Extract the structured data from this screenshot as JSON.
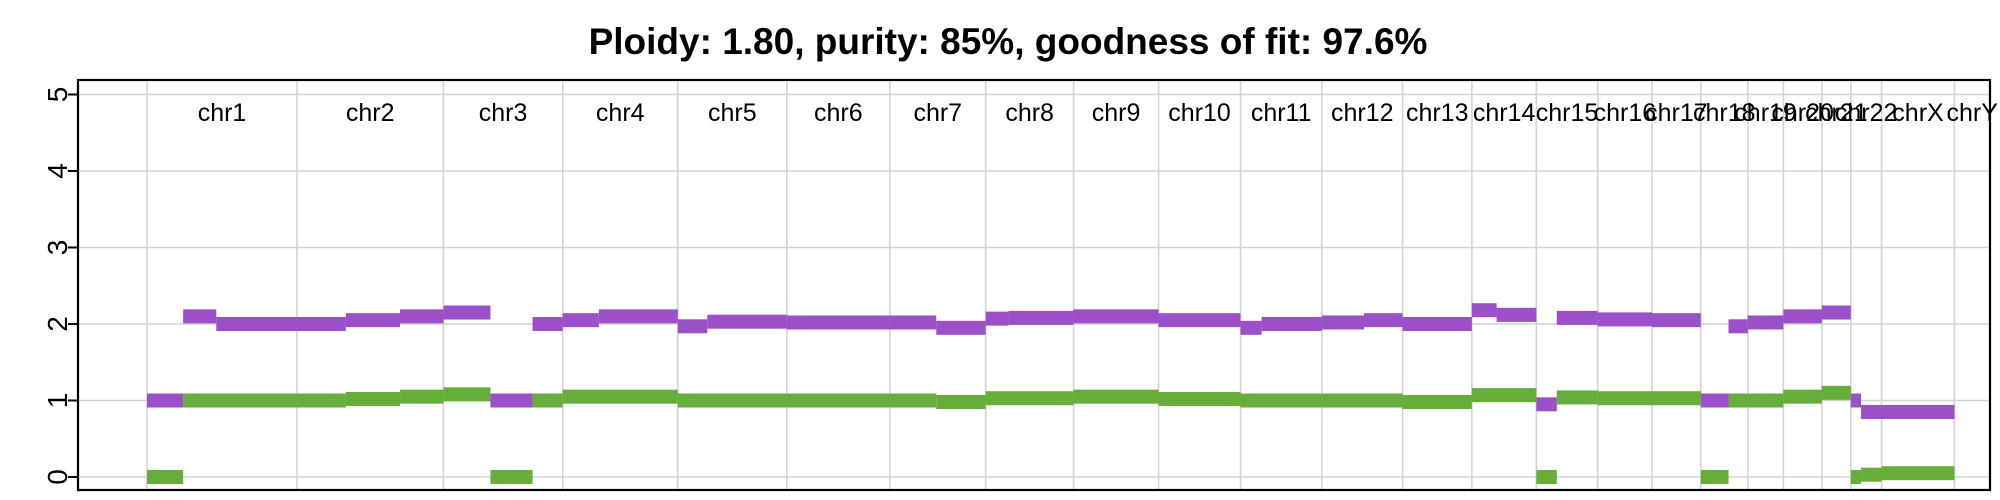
{
  "chart_data": {
    "type": "scatter",
    "title": "Ploidy: 1.80, purity: 85%, goodness of fit: 97.6%",
    "xlabel": "",
    "ylabel": "",
    "ylim": [
      0,
      5
    ],
    "yticks": [
      "0",
      "1",
      "2",
      "3",
      "4",
      "5"
    ],
    "x_unit": "genome position (Mb, cumulative)",
    "xlim": [
      0,
      3100
    ],
    "grid": true,
    "colors": {
      "major": "#9b4fc9",
      "minor": "#67ad3a"
    },
    "chromosomes": [
      {
        "name": "chr1",
        "start": 0,
        "end": 249,
        "major": [
          [
            0,
            60,
            1.0
          ],
          [
            60,
            115,
            2.1
          ],
          [
            115,
            249,
            2.0
          ]
        ],
        "minor": [
          [
            0,
            60,
            0.0
          ],
          [
            60,
            249,
            1.0
          ]
        ]
      },
      {
        "name": "chr2",
        "start": 249,
        "end": 492,
        "major": [
          [
            249,
            330,
            2.0
          ],
          [
            330,
            420,
            2.05
          ],
          [
            420,
            492,
            2.1
          ]
        ],
        "minor": [
          [
            249,
            330,
            1.0
          ],
          [
            330,
            420,
            1.02
          ],
          [
            420,
            492,
            1.05
          ]
        ]
      },
      {
        "name": "chr3",
        "start": 492,
        "end": 690,
        "major": [
          [
            492,
            570,
            2.15
          ],
          [
            570,
            640,
            1.0
          ],
          [
            640,
            690,
            2.0
          ]
        ],
        "minor": [
          [
            492,
            570,
            1.08
          ],
          [
            570,
            640,
            0.0
          ],
          [
            640,
            690,
            1.0
          ]
        ]
      },
      {
        "name": "chr4",
        "start": 690,
        "end": 881,
        "major": [
          [
            690,
            750,
            2.05
          ],
          [
            750,
            881,
            2.1
          ]
        ],
        "minor": [
          [
            690,
            881,
            1.05
          ]
        ]
      },
      {
        "name": "chr5",
        "start": 881,
        "end": 1062,
        "major": [
          [
            881,
            930,
            1.97
          ],
          [
            930,
            1062,
            2.03
          ]
        ],
        "minor": [
          [
            881,
            1062,
            1.0
          ]
        ]
      },
      {
        "name": "chr6",
        "start": 1062,
        "end": 1233,
        "major": [
          [
            1062,
            1233,
            2.02
          ]
        ],
        "minor": [
          [
            1062,
            1233,
            1.0
          ]
        ]
      },
      {
        "name": "chr7",
        "start": 1233,
        "end": 1392,
        "major": [
          [
            1233,
            1310,
            2.02
          ],
          [
            1310,
            1392,
            1.95
          ]
        ],
        "minor": [
          [
            1233,
            1310,
            1.0
          ],
          [
            1310,
            1392,
            0.98
          ]
        ]
      },
      {
        "name": "chr8",
        "start": 1392,
        "end": 1538,
        "major": [
          [
            1392,
            1430,
            2.07
          ],
          [
            1430,
            1538,
            2.08
          ]
        ],
        "minor": [
          [
            1392,
            1538,
            1.03
          ]
        ]
      },
      {
        "name": "chr9",
        "start": 1538,
        "end": 1679,
        "major": [
          [
            1538,
            1679,
            2.1
          ]
        ],
        "minor": [
          [
            1538,
            1679,
            1.05
          ]
        ]
      },
      {
        "name": "chr10",
        "start": 1679,
        "end": 1815,
        "major": [
          [
            1679,
            1815,
            2.05
          ]
        ],
        "minor": [
          [
            1679,
            1815,
            1.02
          ]
        ]
      },
      {
        "name": "chr11",
        "start": 1815,
        "end": 1950,
        "major": [
          [
            1815,
            1850,
            1.95
          ],
          [
            1850,
            1950,
            2.0
          ]
        ],
        "minor": [
          [
            1815,
            1950,
            1.0
          ]
        ]
      },
      {
        "name": "chr12",
        "start": 1950,
        "end": 2084,
        "major": [
          [
            1950,
            2020,
            2.02
          ],
          [
            2020,
            2084,
            2.05
          ]
        ],
        "minor": [
          [
            1950,
            2084,
            1.0
          ]
        ]
      },
      {
        "name": "chr13",
        "start": 2084,
        "end": 2199,
        "major": [
          [
            2084,
            2199,
            2.0
          ]
        ],
        "minor": [
          [
            2084,
            2199,
            0.98
          ]
        ]
      },
      {
        "name": "chr14",
        "start": 2199,
        "end": 2306,
        "major": [
          [
            2199,
            2240,
            2.18
          ],
          [
            2240,
            2306,
            2.12
          ]
        ],
        "minor": [
          [
            2199,
            2306,
            1.07
          ]
        ]
      },
      {
        "name": "chr15",
        "start": 2306,
        "end": 2408,
        "major": [
          [
            2306,
            2340,
            0.95
          ],
          [
            2340,
            2408,
            2.08
          ]
        ],
        "minor": [
          [
            2306,
            2340,
            0.0
          ],
          [
            2340,
            2408,
            1.04
          ]
        ]
      },
      {
        "name": "chr16",
        "start": 2408,
        "end": 2498,
        "major": [
          [
            2408,
            2498,
            2.06
          ]
        ],
        "minor": [
          [
            2408,
            2498,
            1.03
          ]
        ]
      },
      {
        "name": "chr17",
        "start": 2498,
        "end": 2579,
        "major": [
          [
            2498,
            2579,
            2.05
          ]
        ],
        "minor": [
          [
            2498,
            2579,
            1.03
          ]
        ]
      },
      {
        "name": "chr18",
        "start": 2579,
        "end": 2657,
        "major": [
          [
            2579,
            2625,
            1.0
          ],
          [
            2625,
            2657,
            1.97
          ]
        ],
        "minor": [
          [
            2579,
            2625,
            0.0
          ],
          [
            2625,
            2657,
            1.0
          ]
        ]
      },
      {
        "name": "chr19",
        "start": 2657,
        "end": 2716,
        "major": [
          [
            2657,
            2716,
            2.02
          ]
        ],
        "minor": [
          [
            2657,
            2716,
            1.0
          ]
        ]
      },
      {
        "name": "chr20",
        "start": 2716,
        "end": 2780,
        "major": [
          [
            2716,
            2780,
            2.1
          ]
        ],
        "minor": [
          [
            2716,
            2780,
            1.05
          ]
        ]
      },
      {
        "name": "chr21",
        "start": 2780,
        "end": 2828,
        "major": [
          [
            2780,
            2828,
            2.15
          ]
        ],
        "minor": [
          [
            2780,
            2828,
            1.1
          ]
        ]
      },
      {
        "name": "chr22",
        "start": 2828,
        "end": 2879,
        "major": [
          [
            2828,
            2845,
            1.0
          ],
          [
            2845,
            2879,
            0.85
          ]
        ],
        "minor": [
          [
            2828,
            2845,
            0.0
          ],
          [
            2845,
            2879,
            0.03
          ]
        ]
      },
      {
        "name": "chrX",
        "start": 2879,
        "end": 3000,
        "major": [
          [
            2879,
            3000,
            0.85
          ]
        ],
        "minor": [
          [
            2879,
            3000,
            0.05
          ]
        ]
      },
      {
        "name": "chrY",
        "start": 3000,
        "end": 3059,
        "major": [],
        "minor": []
      }
    ]
  }
}
